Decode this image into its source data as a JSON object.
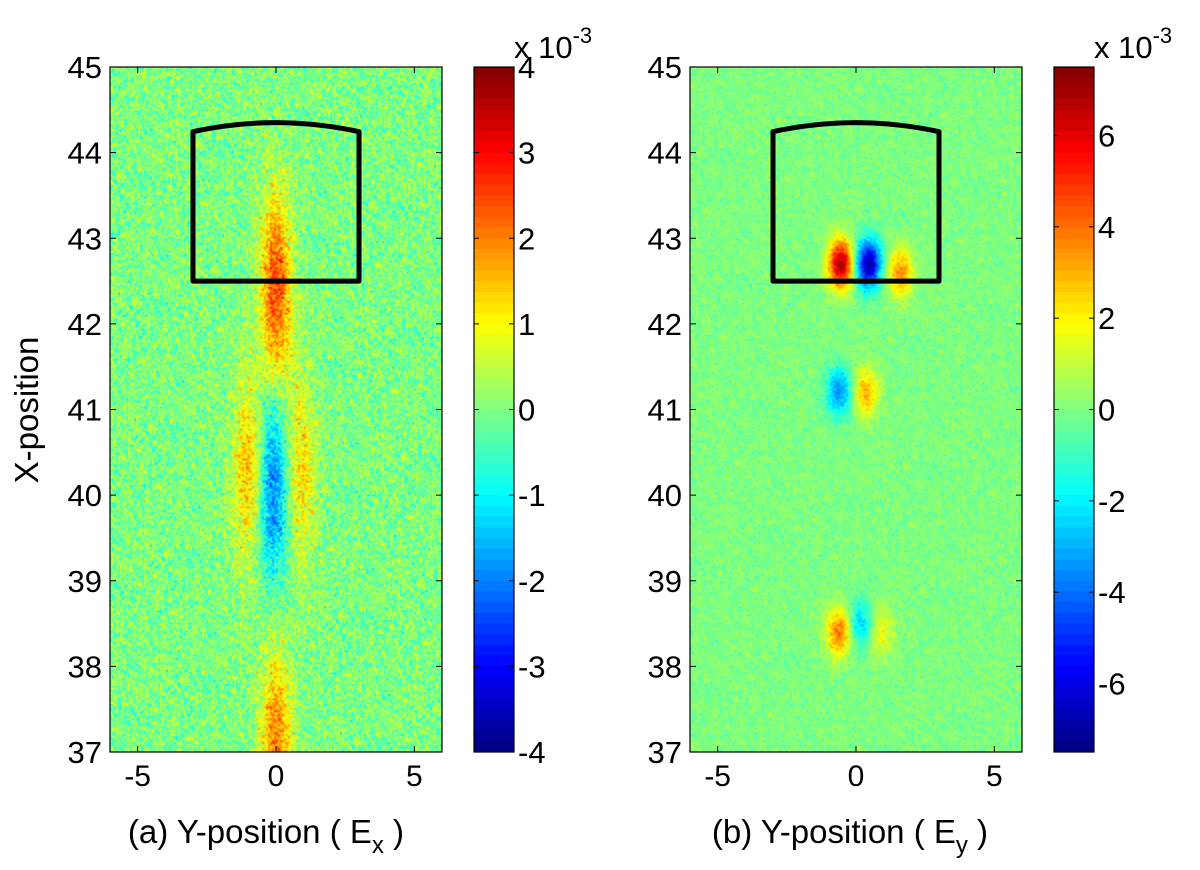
{
  "chart_data": [
    {
      "type": "heatmap",
      "panel": "a",
      "title": "",
      "xlabel": "(a) Y-position ( E",
      "xlabel_sub": "x",
      "xlabel_close": " )",
      "ylabel": "X-position",
      "xlim": [
        -6,
        6
      ],
      "ylim": [
        37,
        45
      ],
      "xticks": [
        "-5",
        "0",
        "5"
      ],
      "xtick_values": [
        -5,
        0,
        5
      ],
      "yticks": [
        "37",
        "38",
        "39",
        "40",
        "41",
        "42",
        "43",
        "44",
        "45"
      ],
      "ytick_values": [
        37,
        38,
        39,
        40,
        41,
        42,
        43,
        44,
        45
      ],
      "colorbar": {
        "range": [
          -4,
          4
        ],
        "ticks": [
          "-4",
          "-3",
          "-2",
          "-1",
          "0",
          "1",
          "2",
          "3",
          "4"
        ],
        "tick_values": [
          -4,
          -3,
          -2,
          -1,
          0,
          1,
          2,
          3,
          4
        ],
        "exponent_base": "x 10",
        "exponent": "-3",
        "colormap": "jet"
      },
      "outline_box": {
        "y_range": [
          -3,
          3
        ],
        "x_range": [
          42.5,
          44.35
        ],
        "color": "#000000"
      },
      "features": [
        {
          "y": 0.0,
          "x": 42.4,
          "value": 2.5
        },
        {
          "y": -0.1,
          "x": 40.1,
          "value": -2.0
        },
        {
          "y": -1.0,
          "x": 40.3,
          "value": 1.5
        },
        {
          "y": 0.9,
          "x": 40.3,
          "value": 1.2
        },
        {
          "y": 0.0,
          "x": 37.1,
          "value": 2.0
        }
      ]
    },
    {
      "type": "heatmap",
      "panel": "b",
      "title": "",
      "xlabel": "(b) Y-position ( E",
      "xlabel_sub": "y",
      "xlabel_close": " )",
      "ylabel": "",
      "xlim": [
        -6,
        6
      ],
      "ylim": [
        37,
        45
      ],
      "xticks": [
        "-5",
        "0",
        "5"
      ],
      "xtick_values": [
        -5,
        0,
        5
      ],
      "yticks": [
        "37",
        "38",
        "39",
        "40",
        "41",
        "42",
        "43",
        "44",
        "45"
      ],
      "ytick_values": [
        37,
        38,
        39,
        40,
        41,
        42,
        43,
        44,
        45
      ],
      "colorbar": {
        "range": [
          -7.5,
          7.5
        ],
        "ticks": [
          "-6",
          "-4",
          "-2",
          "0",
          "2",
          "4",
          "6"
        ],
        "tick_values": [
          -6,
          -4,
          -2,
          0,
          2,
          4,
          6
        ],
        "exponent_base": "x 10",
        "exponent": "-3",
        "colormap": "jet"
      },
      "outline_box": {
        "y_range": [
          -3,
          3
        ],
        "x_range": [
          42.5,
          44.35
        ],
        "color": "#000000"
      },
      "features": [
        {
          "y": -0.55,
          "x": 42.7,
          "value": 7.0
        },
        {
          "y": 0.45,
          "x": 42.7,
          "value": -7.0
        },
        {
          "y": 1.6,
          "x": 42.6,
          "value": 3.5
        },
        {
          "y": -0.6,
          "x": 41.2,
          "value": -3.5
        },
        {
          "y": 0.35,
          "x": 41.2,
          "value": 3.0
        },
        {
          "y": -0.6,
          "x": 38.4,
          "value": 4.0
        },
        {
          "y": 0.15,
          "x": 38.5,
          "value": -2.5
        },
        {
          "y": 0.9,
          "x": 38.4,
          "value": 1.8
        }
      ]
    }
  ]
}
